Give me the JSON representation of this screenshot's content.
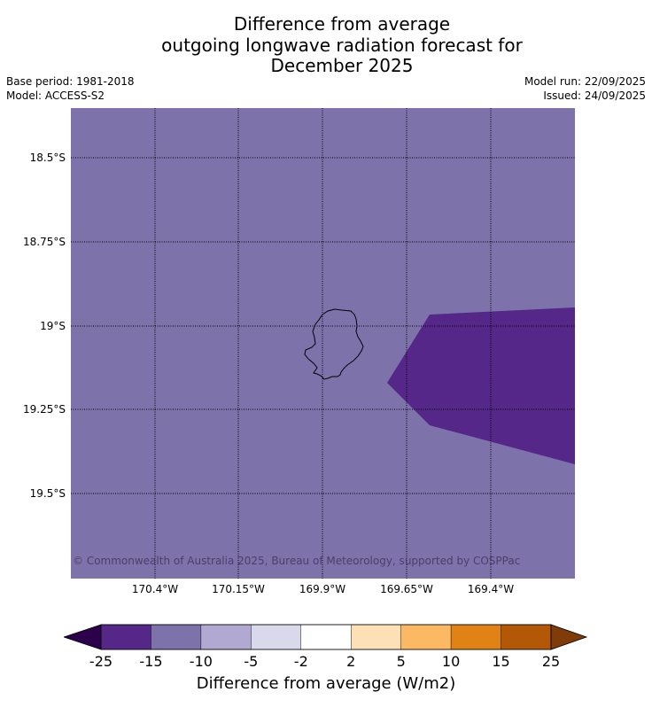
{
  "title_lines": [
    "Difference from average",
    "outgoing longwave radiation forecast for",
    "December 2025"
  ],
  "meta": {
    "base_period": "Base period: 1981-2018",
    "model": "Model: ACCESS-S2",
    "model_run": "Model run: 22/09/2025",
    "issued": "Issued: 24/09/2025"
  },
  "map": {
    "background_color": "#7e72aa",
    "anomaly_color": "#542788",
    "island_outline_color": "#000000",
    "lat_labels": [
      "18.5°S",
      "18.75°S",
      "19°S",
      "19.25°S",
      "19.5°S"
    ],
    "lon_labels": [
      "170.4°W",
      "170.15°W",
      "169.9°W",
      "169.65°W",
      "169.4°W"
    ],
    "copyright": "© Commonwealth of Australia 2025, Bureau of Meteorology, supported by COSPPac"
  },
  "colorbar": {
    "colors": [
      "#542788",
      "#7e72aa",
      "#b1a9d2",
      "#d9d9ec",
      "#ffffff",
      "#fee0b6",
      "#fdb863",
      "#e08214",
      "#b35806"
    ],
    "under_color": "#2d004b",
    "over_color": "#7f3b08",
    "ticks": [
      "-25",
      "-15",
      "-10",
      "-5",
      "-2",
      "2",
      "5",
      "10",
      "15",
      "25"
    ],
    "label": "Difference from average (W/m2)"
  }
}
